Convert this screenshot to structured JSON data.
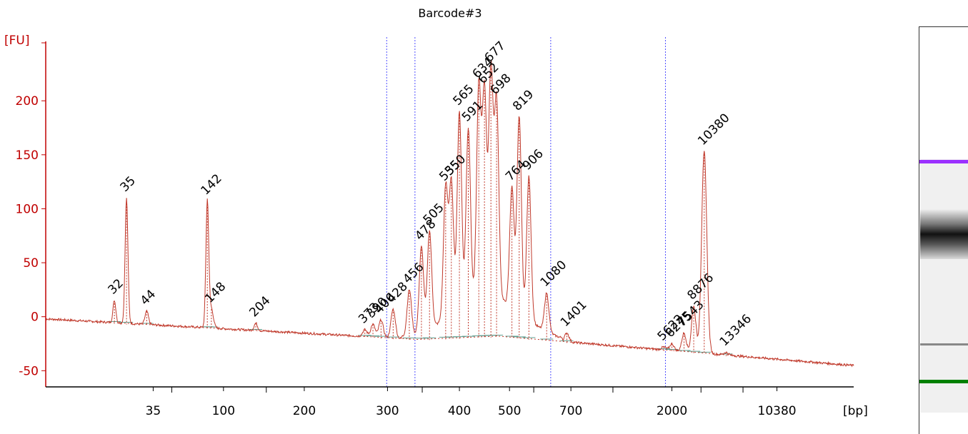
{
  "chart_data": {
    "type": "line",
    "title": "Barcode#3",
    "ylabel": "[FU]",
    "xlabel": "[bp]",
    "ylim": [
      -65,
      255
    ],
    "y_ticks": [
      "-50",
      "0",
      "50",
      "100",
      "150",
      "200"
    ],
    "x_ticks": [
      "35",
      "100",
      "200",
      "300",
      "400",
      "500",
      "700",
      "2000",
      "10380"
    ],
    "colors": {
      "trace": "#c0392b",
      "axis": "#c00000",
      "marker_low": "#008000",
      "marker_high": "#9b30ff",
      "text": "#000000",
      "guide": "#5050ff",
      "baseline": "#5f9e8f"
    },
    "peaks": [
      {
        "label": "32",
        "x": 8.5,
        "y": 15
      },
      {
        "label": "35",
        "x": 10,
        "y": 110,
        "color": "#008000"
      },
      {
        "label": "44",
        "x": 12.5,
        "y": 5
      },
      {
        "label": "142",
        "x": 20,
        "y": 107
      },
      {
        "label": "148",
        "x": 20.5,
        "y": 7
      },
      {
        "label": "204",
        "x": 26,
        "y": -6
      },
      {
        "label": "373",
        "x": 39.5,
        "y": -12
      },
      {
        "label": "390",
        "x": 40.5,
        "y": -7
      },
      {
        "label": "406",
        "x": 41.5,
        "y": -3
      },
      {
        "label": "428",
        "x": 43,
        "y": 7
      },
      {
        "label": "456",
        "x": 45,
        "y": 25
      },
      {
        "label": "478",
        "x": 46.5,
        "y": 65
      },
      {
        "label": "505",
        "x": 47.5,
        "y": 80
      },
      {
        "label": "535",
        "x": 49.5,
        "y": 120
      },
      {
        "label": "550",
        "x": 50.2,
        "y": 125
      },
      {
        "label": "565",
        "x": 51.2,
        "y": 190
      },
      {
        "label": "591",
        "x": 52.3,
        "y": 175
      },
      {
        "label": "634",
        "x": 53.6,
        "y": 215
      },
      {
        "label": "652",
        "x": 54.3,
        "y": 210
      },
      {
        "label": "677",
        "x": 55.1,
        "y": 230
      },
      {
        "label": "698",
        "x": 55.8,
        "y": 200
      },
      {
        "label": "764",
        "x": 57.7,
        "y": 120
      },
      {
        "label": "819",
        "x": 58.6,
        "y": 185
      },
      {
        "label": "906",
        "x": 59.8,
        "y": 130
      },
      {
        "label": "1080",
        "x": 62,
        "y": 22
      },
      {
        "label": "1401",
        "x": 64.5,
        "y": -15
      },
      {
        "label": "5622",
        "x": 76.5,
        "y": -28
      },
      {
        "label": "6275",
        "x": 77.5,
        "y": -25
      },
      {
        "label": "7543",
        "x": 79,
        "y": -15
      },
      {
        "label": "8876",
        "x": 80.2,
        "y": 10
      },
      {
        "label": "10380",
        "x": 81.5,
        "y": 153,
        "color": "#9b30ff"
      },
      {
        "label": "13346",
        "x": 84.2,
        "y": -33
      }
    ]
  }
}
